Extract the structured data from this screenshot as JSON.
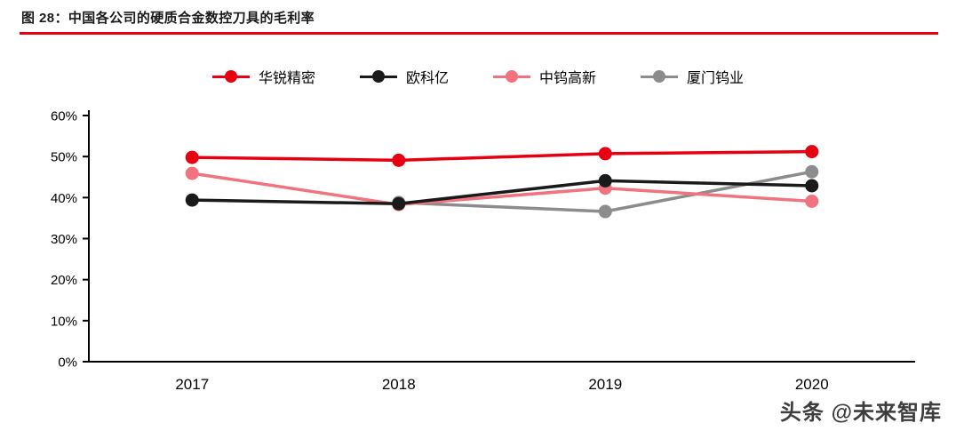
{
  "header": {
    "title": "图 28：中国各公司的硬质合金数控刀具的毛利率"
  },
  "watermark": "头条 @未来智库",
  "chart_data": {
    "type": "line",
    "title": "图 28：中国各公司的硬质合金数控刀具的毛利率",
    "categories": [
      "2017",
      "2018",
      "2019",
      "2020"
    ],
    "series": [
      {
        "name": "华锐精密",
        "color": "#e60012",
        "values": [
          49.8,
          49.1,
          50.7,
          51.2
        ]
      },
      {
        "name": "欧科亿",
        "color": "#1a1a1a",
        "values": [
          39.4,
          38.5,
          44.1,
          42.9
        ]
      },
      {
        "name": "中钨高新",
        "color": "#f0737f",
        "values": [
          45.9,
          38.3,
          42.3,
          39.1
        ]
      },
      {
        "name": "厦门钨业",
        "color": "#8c8c8c",
        "values": [
          null,
          38.8,
          36.6,
          46.3
        ]
      }
    ],
    "ylim": [
      0,
      60
    ],
    "ytick_step": 10,
    "ytick_suffix": "%",
    "grid": false,
    "legend_position": "top",
    "axis_color": "#000000"
  }
}
